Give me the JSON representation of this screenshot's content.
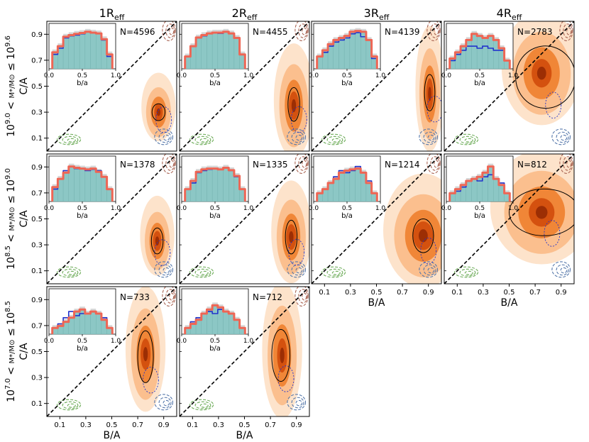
{
  "figure": {
    "column_titles": [
      {
        "base": "1R",
        "sub": "eff"
      },
      {
        "base": "2R",
        "sub": "eff"
      },
      {
        "base": "3R",
        "sub": "eff"
      },
      {
        "base": "4R",
        "sub": "eff"
      }
    ],
    "row_labels": [
      {
        "lo": "9.0",
        "hi": "9.6"
      },
      {
        "lo": "8.5",
        "hi": "9.0"
      },
      {
        "lo": "7.0",
        "hi": "8.5"
      }
    ],
    "row_label_parts": {
      "base": "10",
      "lt": " < ",
      "le": " ≤ ",
      "mass": "M*/M⊙"
    },
    "ylabel": "C/A",
    "xlabel": "B/A",
    "y_ticks": [
      "0.9",
      "0.7",
      "0.5",
      "0.3",
      "0.1"
    ],
    "x_ticks": [
      "0.1",
      "0.3",
      "0.5",
      "0.7",
      "0.9"
    ],
    "inset": {
      "xlabel": "b/a",
      "xticks": [
        "0.0",
        "0.5",
        "1.0"
      ]
    }
  },
  "chart_data": {
    "type": "contour-grid",
    "xlim": [
      0,
      1
    ],
    "ylim": [
      0,
      1
    ],
    "panels": [
      {
        "row": 0,
        "col": 0,
        "n_label": "N=4596",
        "center": [
          0.86,
          0.3
        ],
        "spread": [
          0.06,
          0.12
        ],
        "ellipse": {
          "cx": 0.86,
          "cy": 0.3,
          "rx": 0.05,
          "ry": 0.065
        },
        "hist_blue": [
          0.35,
          0.5,
          0.75,
          0.8,
          0.82,
          0.85,
          0.9,
          0.88,
          0.85,
          0.7,
          0.3
        ],
        "hist_red": [
          0.4,
          0.55,
          0.78,
          0.82,
          0.85,
          0.87,
          0.9,
          0.88,
          0.86,
          0.72,
          0.35
        ]
      },
      {
        "row": 0,
        "col": 1,
        "n_label": "N=4455",
        "center": [
          0.88,
          0.35
        ],
        "spread": [
          0.07,
          0.2
        ],
        "ellipse": {
          "cx": 0.88,
          "cy": 0.36,
          "rx": 0.045,
          "ry": 0.13
        },
        "hist_blue": [
          0.3,
          0.55,
          0.75,
          0.8,
          0.85,
          0.88,
          0.86,
          0.9,
          0.85,
          0.75,
          0.35
        ],
        "hist_red": [
          0.3,
          0.55,
          0.76,
          0.82,
          0.86,
          0.88,
          0.88,
          0.9,
          0.86,
          0.75,
          0.35
        ]
      },
      {
        "row": 0,
        "col": 2,
        "n_label": "N=4139",
        "center": [
          0.91,
          0.44
        ],
        "spread": [
          0.05,
          0.22
        ],
        "ellipse": {
          "cx": 0.91,
          "cy": 0.45,
          "rx": 0.04,
          "ry": 0.14
        },
        "hist_blue": [
          0.3,
          0.4,
          0.55,
          0.65,
          0.7,
          0.75,
          0.85,
          0.88,
          0.78,
          0.7,
          0.25
        ],
        "hist_red": [
          0.3,
          0.45,
          0.6,
          0.7,
          0.75,
          0.8,
          0.9,
          0.92,
          0.9,
          0.7,
          0.3
        ]
      },
      {
        "row": 0,
        "col": 3,
        "n_label": "N=2783",
        "center": [
          0.75,
          0.6
        ],
        "spread": [
          0.14,
          0.2
        ],
        "ellipse": {
          "cx": 0.78,
          "cy": 0.57,
          "rx": 0.23,
          "ry": 0.24
        },
        "hist_blue": [
          0.2,
          0.35,
          0.45,
          0.55,
          0.55,
          0.5,
          0.55,
          0.5,
          0.45,
          0.45,
          0.2
        ],
        "hist_red": [
          0.25,
          0.4,
          0.55,
          0.7,
          0.85,
          0.8,
          0.75,
          0.8,
          0.7,
          0.5,
          0.2
        ]
      },
      {
        "row": 1,
        "col": 0,
        "n_label": "N=1378",
        "center": [
          0.85,
          0.33
        ],
        "spread": [
          0.06,
          0.14
        ],
        "ellipse": {
          "cx": 0.85,
          "cy": 0.33,
          "rx": 0.045,
          "ry": 0.1
        },
        "hist_blue": [
          0.3,
          0.55,
          0.75,
          0.85,
          0.8,
          0.8,
          0.75,
          0.78,
          0.75,
          0.6,
          0.3
        ],
        "hist_red": [
          0.35,
          0.55,
          0.7,
          0.85,
          0.82,
          0.8,
          0.78,
          0.8,
          0.72,
          0.6,
          0.3
        ]
      },
      {
        "row": 1,
        "col": 1,
        "n_label": "N=1335",
        "center": [
          0.86,
          0.36
        ],
        "spread": [
          0.07,
          0.18
        ],
        "ellipse": {
          "cx": 0.86,
          "cy": 0.36,
          "rx": 0.045,
          "ry": 0.13
        },
        "hist_blue": [
          0.3,
          0.45,
          0.7,
          0.75,
          0.78,
          0.8,
          0.78,
          0.82,
          0.75,
          0.6,
          0.3
        ],
        "hist_red": [
          0.3,
          0.5,
          0.72,
          0.78,
          0.8,
          0.8,
          0.78,
          0.82,
          0.76,
          0.62,
          0.3
        ]
      },
      {
        "row": 1,
        "col": 2,
        "n_label": "N=1214",
        "center": [
          0.86,
          0.37
        ],
        "spread": [
          0.14,
          0.2
        ],
        "ellipse": {
          "cx": 0.86,
          "cy": 0.37,
          "rx": 0.08,
          "ry": 0.13
        },
        "hist_blue": [
          0.2,
          0.3,
          0.45,
          0.6,
          0.75,
          0.7,
          0.75,
          0.85,
          0.7,
          0.5,
          0.2
        ],
        "hist_red": [
          0.2,
          0.3,
          0.45,
          0.55,
          0.7,
          0.75,
          0.78,
          0.8,
          0.7,
          0.45,
          0.2
        ]
      },
      {
        "row": 1,
        "col": 3,
        "n_label": "N=812",
        "center": [
          0.75,
          0.55
        ],
        "spread": [
          0.18,
          0.2
        ],
        "ellipse": {
          "cx": 0.77,
          "cy": 0.55,
          "rx": 0.27,
          "ry": 0.18
        },
        "hist_blue": [
          0.2,
          0.25,
          0.35,
          0.5,
          0.55,
          0.5,
          0.6,
          0.65,
          0.55,
          0.45,
          0.2
        ],
        "hist_red": [
          0.2,
          0.3,
          0.4,
          0.5,
          0.55,
          0.6,
          0.7,
          0.85,
          0.55,
          0.4,
          0.2
        ]
      },
      {
        "row": 2,
        "col": 0,
        "n_label": "N=733",
        "center": [
          0.76,
          0.48
        ],
        "spread": [
          0.07,
          0.22
        ],
        "ellipse": {
          "cx": 0.76,
          "cy": 0.46,
          "rx": 0.06,
          "ry": 0.2
        },
        "hist_blue": [
          0.15,
          0.25,
          0.4,
          0.55,
          0.45,
          0.5,
          0.5,
          0.55,
          0.5,
          0.4,
          0.15
        ],
        "hist_red": [
          0.15,
          0.2,
          0.3,
          0.4,
          0.55,
          0.6,
          0.5,
          0.55,
          0.5,
          0.35,
          0.15
        ]
      },
      {
        "row": 2,
        "col": 1,
        "n_label": "N=712",
        "center": [
          0.79,
          0.47
        ],
        "spread": [
          0.07,
          0.24
        ],
        "ellipse": {
          "cx": 0.78,
          "cy": 0.47,
          "rx": 0.07,
          "ry": 0.2
        },
        "hist_blue": [
          0.15,
          0.3,
          0.4,
          0.5,
          0.55,
          0.5,
          0.6,
          0.55,
          0.5,
          0.35,
          0.15
        ],
        "hist_red": [
          0.15,
          0.25,
          0.35,
          0.5,
          0.6,
          0.7,
          0.65,
          0.55,
          0.5,
          0.35,
          0.15
        ]
      }
    ]
  },
  "colors": {
    "fill1": "#fde3cb",
    "fill2": "#fbbf8e",
    "fill3": "#f08637",
    "fill4": "#d4510f",
    "fill5": "#9c2e04",
    "diag": "#000000",
    "blue": "#2233cc",
    "red": "#ee6655",
    "teal": "#8cc7c5",
    "green": "#6aaa55",
    "slate": "#5577aa",
    "brown": "#aa6655"
  }
}
